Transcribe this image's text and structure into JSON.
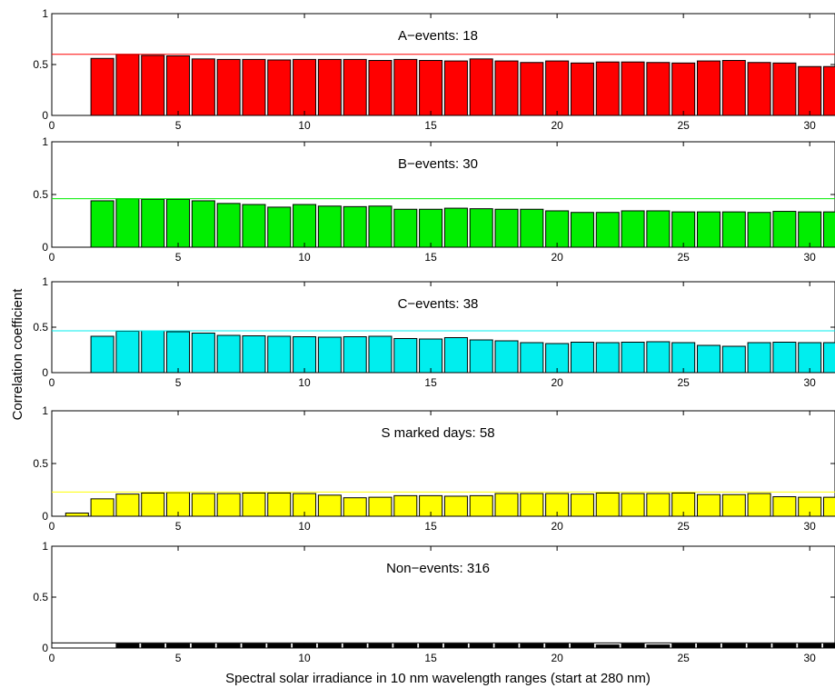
{
  "figure": {
    "ylabel": "Correlation coefficient",
    "xlabel": "Spectral solar irradiance in 10 nm wavelength ranges (start at 280 nm)"
  },
  "chart_data": [
    {
      "type": "bar",
      "title": "A−events: 18",
      "color": "#ff0000",
      "xlim": [
        0,
        31
      ],
      "ylim": [
        0,
        1
      ],
      "xticks": [
        "0",
        "5",
        "10",
        "15",
        "20",
        "25",
        "30"
      ],
      "yticks": [
        "0",
        "0.5",
        "1"
      ],
      "reference_line": 0.6,
      "x": [
        2,
        3,
        4,
        5,
        6,
        7,
        8,
        9,
        10,
        11,
        12,
        13,
        14,
        15,
        16,
        17,
        18,
        19,
        20,
        21,
        22,
        23,
        24,
        25,
        26,
        27,
        28,
        29,
        30,
        31
      ],
      "values": [
        0.56,
        0.6,
        0.59,
        0.585,
        0.555,
        0.55,
        0.55,
        0.545,
        0.55,
        0.55,
        0.55,
        0.54,
        0.55,
        0.54,
        0.535,
        0.555,
        0.535,
        0.52,
        0.535,
        0.515,
        0.525,
        0.525,
        0.52,
        0.515,
        0.535,
        0.54,
        0.52,
        0.515,
        0.48,
        0.48
      ]
    },
    {
      "type": "bar",
      "title": "B−events: 30",
      "color": "#00ee00",
      "xlim": [
        0,
        31
      ],
      "ylim": [
        0,
        1
      ],
      "xticks": [
        "0",
        "5",
        "10",
        "15",
        "20",
        "25",
        "30"
      ],
      "yticks": [
        "0",
        "0.5",
        "1"
      ],
      "reference_line": 0.46,
      "x": [
        2,
        3,
        4,
        5,
        6,
        7,
        8,
        9,
        10,
        11,
        12,
        13,
        14,
        15,
        16,
        17,
        18,
        19,
        20,
        21,
        22,
        23,
        24,
        25,
        26,
        27,
        28,
        29,
        30,
        31
      ],
      "values": [
        0.44,
        0.46,
        0.455,
        0.455,
        0.44,
        0.415,
        0.405,
        0.38,
        0.405,
        0.39,
        0.385,
        0.39,
        0.36,
        0.36,
        0.37,
        0.365,
        0.36,
        0.36,
        0.345,
        0.33,
        0.33,
        0.345,
        0.345,
        0.335,
        0.335,
        0.335,
        0.33,
        0.34,
        0.335,
        0.335
      ]
    },
    {
      "type": "bar",
      "title": "C−events: 38",
      "color": "#00eeee",
      "xlim": [
        0,
        31
      ],
      "ylim": [
        0,
        1
      ],
      "xticks": [
        "0",
        "5",
        "10",
        "15",
        "20",
        "25",
        "30"
      ],
      "yticks": [
        "0",
        "0.5",
        "1"
      ],
      "reference_line": 0.46,
      "x": [
        2,
        3,
        4,
        5,
        6,
        7,
        8,
        9,
        10,
        11,
        12,
        13,
        14,
        15,
        16,
        17,
        18,
        19,
        20,
        21,
        22,
        23,
        24,
        25,
        26,
        27,
        28,
        29,
        30,
        31
      ],
      "values": [
        0.4,
        0.455,
        0.46,
        0.45,
        0.435,
        0.41,
        0.405,
        0.4,
        0.395,
        0.39,
        0.395,
        0.4,
        0.375,
        0.37,
        0.385,
        0.36,
        0.35,
        0.33,
        0.32,
        0.335,
        0.33,
        0.335,
        0.34,
        0.33,
        0.3,
        0.29,
        0.33,
        0.335,
        0.33,
        0.33
      ]
    },
    {
      "type": "bar",
      "title": "S marked days: 58",
      "color": "#ffff00",
      "xlim": [
        0,
        31
      ],
      "ylim": [
        0,
        1
      ],
      "xticks": [
        "0",
        "5",
        "10",
        "15",
        "20",
        "25",
        "30"
      ],
      "yticks": [
        "0",
        "0.5",
        "1"
      ],
      "reference_line": 0.23,
      "x": [
        1,
        2,
        3,
        4,
        5,
        6,
        7,
        8,
        9,
        10,
        11,
        12,
        13,
        14,
        15,
        16,
        17,
        18,
        19,
        20,
        21,
        22,
        23,
        24,
        25,
        26,
        27,
        28,
        29,
        30,
        31
      ],
      "values": [
        0.03,
        0.165,
        0.21,
        0.22,
        0.225,
        0.215,
        0.215,
        0.22,
        0.22,
        0.215,
        0.2,
        0.175,
        0.18,
        0.195,
        0.195,
        0.19,
        0.195,
        0.215,
        0.215,
        0.215,
        0.21,
        0.22,
        0.215,
        0.215,
        0.22,
        0.205,
        0.205,
        0.215,
        0.185,
        0.18,
        0.18
      ]
    },
    {
      "type": "bar",
      "title": "Non−events: 316",
      "color": "#000000",
      "xlim": [
        0,
        31
      ],
      "ylim": [
        0,
        1
      ],
      "xticks": [
        "0",
        "5",
        "10",
        "15",
        "20",
        "25",
        "30"
      ],
      "yticks": [
        "0",
        "0.5",
        "1"
      ],
      "reference_line": 0.05,
      "x": [
        3,
        4,
        5,
        6,
        7,
        8,
        9,
        10,
        11,
        12,
        13,
        14,
        15,
        16,
        17,
        18,
        19,
        20,
        21,
        22,
        23,
        24,
        25,
        26,
        27,
        28,
        29,
        30,
        31
      ],
      "values": [
        0.04,
        0.04,
        0.04,
        0.04,
        0.04,
        0.04,
        0.04,
        0.04,
        0.04,
        0.04,
        0.04,
        0.04,
        0.04,
        0.04,
        0.04,
        0.04,
        0.04,
        0.04,
        0.04,
        0.03,
        0.04,
        0.03,
        0.04,
        0.04,
        0.04,
        0.04,
        0.04,
        0.04,
        0.04
      ]
    }
  ]
}
